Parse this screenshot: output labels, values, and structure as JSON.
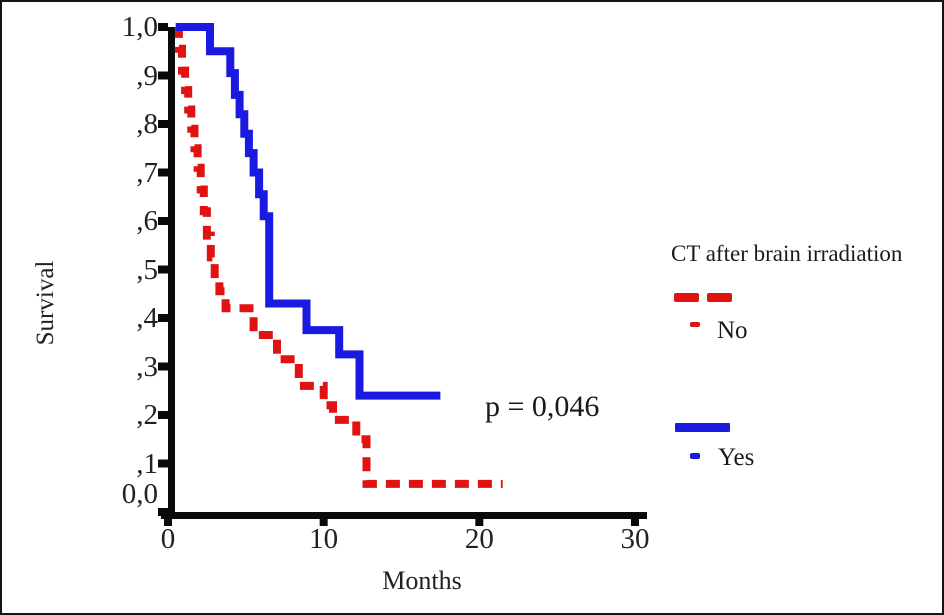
{
  "chart_data": {
    "type": "line",
    "subtype": "kaplan-meier-step",
    "title": "",
    "xlabel": "Months",
    "ylabel": "Survival",
    "xlim": [
      0,
      31
    ],
    "ylim": [
      0.0,
      1.0
    ],
    "grid": false,
    "x_ticks": [
      0,
      10,
      20,
      30
    ],
    "x_tick_labels": [
      "0",
      "10",
      "20",
      "30"
    ],
    "y_tick_values": [
      1.0,
      0.9,
      0.8,
      0.7,
      0.6,
      0.5,
      0.4,
      0.3,
      0.2,
      0.1,
      0.0
    ],
    "y_tick_labels": [
      "1,0",
      ",9",
      ",8",
      ",7",
      ",6",
      ",5",
      ",4",
      ",3",
      ",2",
      ",1",
      "0,0"
    ],
    "annotation": "p = 0,046",
    "axis_color": "#0a0a0a",
    "legend": {
      "title": "CT after brain irradiation",
      "position": "right",
      "entries": [
        {
          "label": "No",
          "color": "#e11212",
          "dash": true
        },
        {
          "label": "Yes",
          "color": "#1a1ae0",
          "dash": false
        }
      ]
    },
    "series": [
      {
        "name": "No",
        "color": "#e11212",
        "style": "dashed",
        "end_month": 21.5,
        "points": [
          [
            0.5,
            1.0
          ],
          [
            0.7,
            0.955
          ],
          [
            0.9,
            0.91
          ],
          [
            1.1,
            0.87
          ],
          [
            1.3,
            0.83
          ],
          [
            1.5,
            0.79
          ],
          [
            1.7,
            0.75
          ],
          [
            1.9,
            0.71
          ],
          [
            2.1,
            0.665
          ],
          [
            2.3,
            0.62
          ],
          [
            2.5,
            0.57
          ],
          [
            2.75,
            0.525
          ],
          [
            3.0,
            0.48
          ],
          [
            3.3,
            0.455
          ],
          [
            3.7,
            0.42
          ],
          [
            5.5,
            0.365
          ],
          [
            7.0,
            0.315
          ],
          [
            8.4,
            0.26
          ],
          [
            10.0,
            0.22
          ],
          [
            10.6,
            0.19
          ],
          [
            12.1,
            0.15
          ],
          [
            12.75,
            0.058
          ]
        ]
      },
      {
        "name": "Yes",
        "color": "#1a1ae0",
        "style": "solid",
        "end_month": 17.5,
        "points": [
          [
            0.5,
            1.0
          ],
          [
            2.7,
            0.95
          ],
          [
            4.0,
            0.905
          ],
          [
            4.3,
            0.86
          ],
          [
            4.6,
            0.82
          ],
          [
            4.9,
            0.78
          ],
          [
            5.2,
            0.74
          ],
          [
            5.5,
            0.7
          ],
          [
            5.85,
            0.655
          ],
          [
            6.15,
            0.61
          ],
          [
            6.5,
            0.43
          ],
          [
            8.9,
            0.375
          ],
          [
            11.0,
            0.325
          ],
          [
            12.3,
            0.24
          ]
        ]
      }
    ]
  }
}
